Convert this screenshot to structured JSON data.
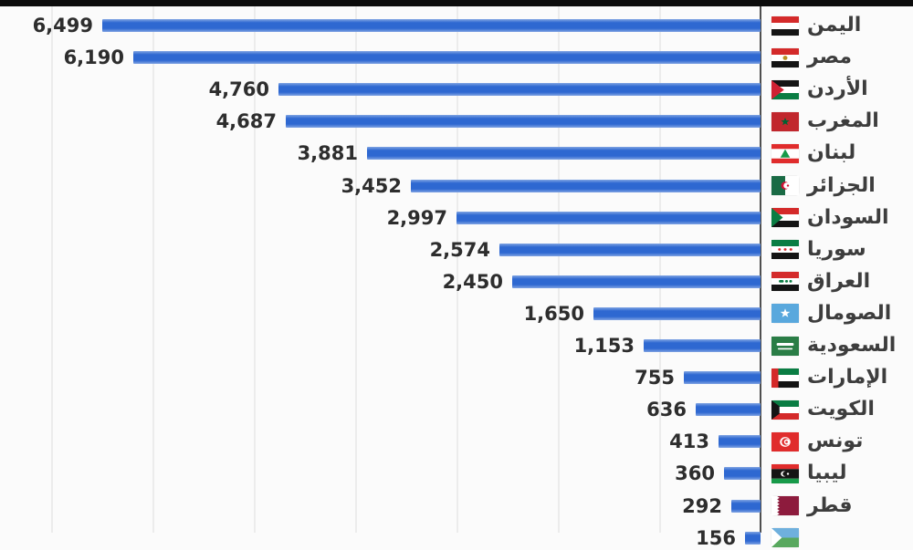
{
  "chart_data": {
    "type": "bar",
    "orientation": "horizontal",
    "direction": "rtl",
    "title": "",
    "categories": [
      "اليمن",
      "مصر",
      "الأردن",
      "المغرب",
      "لبنان",
      "الجزائر",
      "السودان",
      "سوريا",
      "العراق",
      "الصومال",
      "السعودية",
      "الإمارات",
      "الكويت",
      "تونس",
      "ليبيا",
      "قطر",
      ""
    ],
    "values": [
      6499,
      6190,
      4760,
      4687,
      3881,
      3452,
      2997,
      2574,
      2450,
      1650,
      1153,
      755,
      636,
      413,
      360,
      292,
      156
    ],
    "value_labels": [
      "6,499",
      "6,190",
      "4,760",
      "4,687",
      "3,881",
      "3,452",
      "2,997",
      "2,574",
      "2,450",
      "1,650",
      "1,153",
      "755",
      "636",
      "413",
      "360",
      "292",
      "156"
    ],
    "flags": [
      "yemen",
      "egypt",
      "jordan",
      "morocco",
      "lebanon",
      "algeria",
      "sudan",
      "syria",
      "iraq",
      "somalia",
      "saudi-arabia",
      "uae",
      "kuwait",
      "tunisia",
      "libya",
      "qatar",
      "partial"
    ],
    "xlim": [
      0,
      7500
    ],
    "gridline_interval": 1000,
    "grid": true,
    "legend": false
  },
  "colors": {
    "bar": "#2e68d1",
    "value_text": "#2d2d2d",
    "label_text": "#3d3d3d",
    "axis": "#4f4f4f",
    "gridline": "#ececec",
    "background": "#fbfbfb",
    "letterbox": "#0c0c0c"
  }
}
